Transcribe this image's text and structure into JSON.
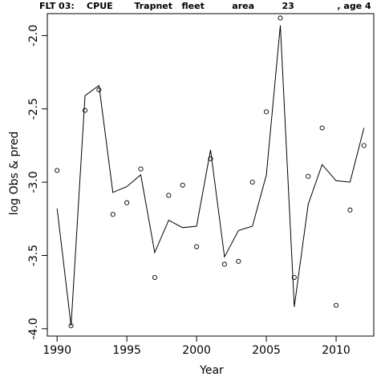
{
  "title": "FLT 03:    CPUE       Trapnet   fleet         area         23              , age 4",
  "chart_data": {
    "type": "line",
    "title": "FLT 03:    CPUE       Trapnet   fleet         area         23              , age 4",
    "xlabel": "Year",
    "ylabel": "log Obs & pred",
    "xlim": [
      1989.3,
      2012.7
    ],
    "ylim": [
      -4.05,
      -1.85
    ],
    "x_ticks": [
      1990,
      1995,
      2000,
      2005,
      2010
    ],
    "y_ticks": [
      -4.0,
      -3.5,
      -3.0,
      -2.5,
      -2.0
    ],
    "y_tick_labels": [
      "-4.0",
      "-3.5",
      "-3.0",
      "-2.5",
      "-2.0"
    ],
    "grid": false,
    "series": [
      {
        "style": "points",
        "marker": "open-circle",
        "x": [
          1990,
          1991,
          1992,
          1993,
          1994,
          1995,
          1996,
          1997,
          1998,
          1999,
          2000,
          2001,
          2002,
          2003,
          2004,
          2005,
          2006,
          2007,
          2008,
          2009,
          2010,
          2011,
          2012
        ],
        "y": [
          -2.92,
          -3.98,
          -2.51,
          -2.37,
          -3.22,
          -3.14,
          -2.91,
          -3.65,
          -3.09,
          -3.02,
          -3.44,
          -2.84,
          -3.56,
          -3.54,
          -3.0,
          -2.52,
          -1.88,
          -3.65,
          -2.96,
          -2.63,
          -3.84,
          -3.19,
          -2.75
        ]
      },
      {
        "style": "line",
        "x": [
          1990,
          1991,
          1992,
          1993,
          1994,
          1995,
          1996,
          1997,
          1998,
          1999,
          2000,
          2001,
          2002,
          2003,
          2004,
          2005,
          2006,
          2007,
          2008,
          2009,
          2010,
          2011,
          2012
        ],
        "y": [
          -3.18,
          -3.98,
          -2.41,
          -2.34,
          -3.07,
          -3.03,
          -2.95,
          -3.48,
          -3.26,
          -3.31,
          -3.3,
          -2.78,
          -3.51,
          -3.33,
          -3.3,
          -2.95,
          -1.93,
          -3.85,
          -3.15,
          -2.88,
          -2.99,
          -3.0,
          -2.63
        ]
      }
    ]
  }
}
